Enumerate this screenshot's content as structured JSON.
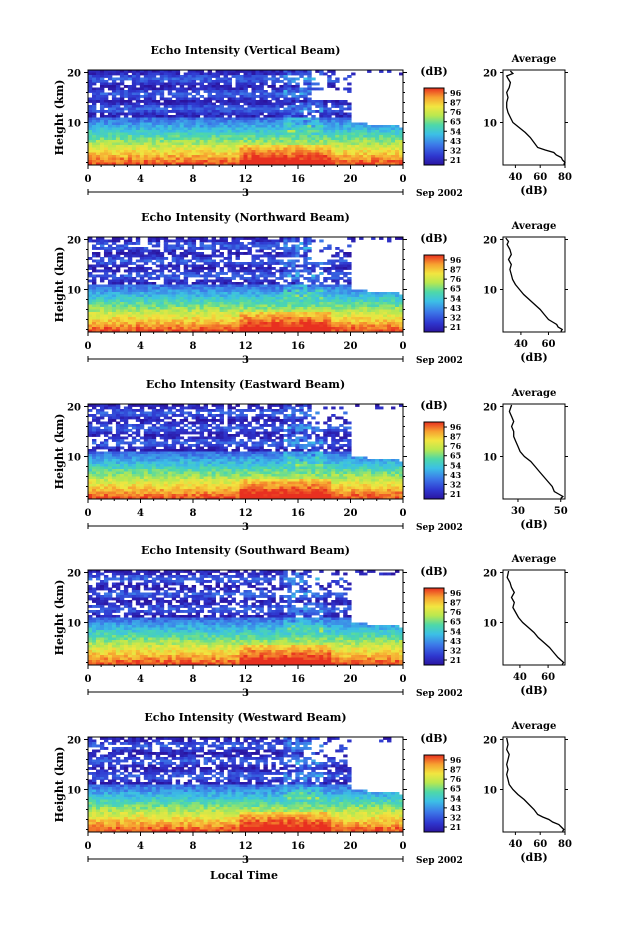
{
  "figure": {
    "xlabel": "Local Time",
    "date_label": "Sep 2002",
    "day_label": "3"
  },
  "chart_data": [
    {
      "type": "heatmap",
      "title": "Echo Intensity (Vertical Beam)",
      "ylabel": "Height (km)",
      "x_ticks": [
        "0",
        "4",
        "8",
        "12",
        "16",
        "20",
        "0"
      ],
      "y_ticks": [
        "20",
        "10"
      ],
      "xlim": [
        0,
        24
      ],
      "ylim": [
        1.5,
        20.5
      ],
      "colorbar": {
        "unit": "(dB)",
        "ticks": [
          "96",
          "87",
          "76",
          "65",
          "54",
          "43",
          "32",
          "21"
        ]
      },
      "average": {
        "title": "Average",
        "xlabel": "(dB)",
        "x_ticks": [
          "40",
          "60",
          "80"
        ],
        "xlim": [
          30,
          80
        ],
        "y_ticks": [
          "20",
          "10"
        ],
        "profile": [
          [
            79,
            1.6
          ],
          [
            80,
            2
          ],
          [
            78,
            2.5
          ],
          [
            77,
            3
          ],
          [
            73,
            3.5
          ],
          [
            71,
            4
          ],
          [
            64,
            4.5
          ],
          [
            58,
            5
          ],
          [
            55,
            6
          ],
          [
            52,
            7
          ],
          [
            48,
            8
          ],
          [
            43,
            9
          ],
          [
            38,
            10
          ],
          [
            36,
            11
          ],
          [
            34,
            12
          ],
          [
            33,
            13
          ],
          [
            33,
            14
          ],
          [
            34,
            15
          ],
          [
            33,
            16
          ],
          [
            35,
            17
          ],
          [
            36,
            18
          ],
          [
            34,
            18.8
          ],
          [
            33,
            19.3
          ],
          [
            38,
            19.8
          ],
          [
            36,
            20.3
          ]
        ]
      }
    },
    {
      "type": "heatmap",
      "title": "Echo Intensity (Northward Beam)",
      "ylabel": "Height (km)",
      "x_ticks": [
        "0",
        "4",
        "8",
        "12",
        "16",
        "20",
        "0"
      ],
      "y_ticks": [
        "20",
        "10"
      ],
      "xlim": [
        0,
        24
      ],
      "ylim": [
        1.5,
        20.5
      ],
      "colorbar": {
        "unit": "(dB)",
        "ticks": [
          "96",
          "87",
          "76",
          "65",
          "54",
          "43",
          "32",
          "21"
        ]
      },
      "average": {
        "title": "Average",
        "xlabel": "(dB)",
        "x_ticks": [
          "40",
          "60"
        ],
        "xlim": [
          27,
          72
        ],
        "y_ticks": [
          "20",
          "10"
        ],
        "profile": [
          [
            69,
            1.6
          ],
          [
            70,
            2
          ],
          [
            67,
            2.5
          ],
          [
            66,
            3
          ],
          [
            63,
            3.5
          ],
          [
            60,
            4
          ],
          [
            57,
            5
          ],
          [
            54,
            6
          ],
          [
            50,
            7
          ],
          [
            46,
            8
          ],
          [
            42,
            9
          ],
          [
            39,
            10
          ],
          [
            36,
            11
          ],
          [
            34,
            12
          ],
          [
            33,
            13
          ],
          [
            32,
            14
          ],
          [
            33,
            15
          ],
          [
            31,
            16
          ],
          [
            33,
            17
          ],
          [
            32,
            18
          ],
          [
            30,
            19
          ],
          [
            31,
            19.6
          ],
          [
            29,
            20.3
          ]
        ]
      }
    },
    {
      "type": "heatmap",
      "title": "Echo Intensity (Eastward Beam)",
      "ylabel": "Height (km)",
      "x_ticks": [
        "0",
        "4",
        "8",
        "12",
        "16",
        "20",
        "0"
      ],
      "y_ticks": [
        "20",
        "10"
      ],
      "xlim": [
        0,
        24
      ],
      "ylim": [
        1.5,
        20.5
      ],
      "colorbar": {
        "unit": "(dB)",
        "ticks": [
          "96",
          "87",
          "76",
          "65",
          "54",
          "43",
          "32",
          "21"
        ]
      },
      "average": {
        "title": "Average",
        "xlabel": "(dB)",
        "x_ticks": [
          "30",
          "50"
        ],
        "xlim": [
          23,
          52
        ],
        "y_ticks": [
          "20",
          "10"
        ],
        "profile": [
          [
            50,
            1.6
          ],
          [
            51,
            2
          ],
          [
            49,
            2.5
          ],
          [
            47,
            3
          ],
          [
            46,
            4
          ],
          [
            44,
            5
          ],
          [
            42,
            6
          ],
          [
            40,
            7
          ],
          [
            38,
            8
          ],
          [
            36,
            9
          ],
          [
            33,
            10
          ],
          [
            31,
            11
          ],
          [
            30,
            12
          ],
          [
            29,
            13
          ],
          [
            28,
            14
          ],
          [
            28,
            15
          ],
          [
            27,
            16
          ],
          [
            28,
            17
          ],
          [
            27,
            18
          ],
          [
            26,
            19
          ],
          [
            27,
            20.3
          ]
        ]
      }
    },
    {
      "type": "heatmap",
      "title": "Echo Intensity (Southward Beam)",
      "ylabel": "Height (km)",
      "x_ticks": [
        "0",
        "4",
        "8",
        "12",
        "16",
        "20",
        "0"
      ],
      "y_ticks": [
        "20",
        "10"
      ],
      "xlim": [
        0,
        24
      ],
      "ylim": [
        1.5,
        20.5
      ],
      "colorbar": {
        "unit": "(dB)",
        "ticks": [
          "96",
          "87",
          "76",
          "65",
          "54",
          "43",
          "32",
          "21"
        ]
      },
      "average": {
        "title": "Average",
        "xlabel": "(dB)",
        "x_ticks": [
          "40",
          "60"
        ],
        "xlim": [
          28,
          72
        ],
        "y_ticks": [
          "20",
          "10"
        ],
        "profile": [
          [
            70,
            1.6
          ],
          [
            71,
            2
          ],
          [
            69,
            2.5
          ],
          [
            67,
            3
          ],
          [
            64,
            4
          ],
          [
            61,
            5
          ],
          [
            57,
            6
          ],
          [
            53,
            7
          ],
          [
            50,
            8
          ],
          [
            46,
            9
          ],
          [
            42,
            10
          ],
          [
            39,
            11
          ],
          [
            37,
            12
          ],
          [
            35,
            13
          ],
          [
            36,
            14
          ],
          [
            34,
            15
          ],
          [
            36,
            16
          ],
          [
            34,
            17
          ],
          [
            33,
            18
          ],
          [
            31,
            19
          ],
          [
            32,
            20.3
          ]
        ]
      }
    },
    {
      "type": "heatmap",
      "title": "Echo Intensity (Westward Beam)",
      "ylabel": "Height (km)",
      "x_ticks": [
        "0",
        "4",
        "8",
        "12",
        "16",
        "20",
        "0"
      ],
      "y_ticks": [
        "20",
        "10"
      ],
      "xlim": [
        0,
        24
      ],
      "ylim": [
        1.5,
        20.5
      ],
      "colorbar": {
        "unit": "(dB)",
        "ticks": [
          "96",
          "87",
          "76",
          "65",
          "54",
          "43",
          "32",
          "21"
        ]
      },
      "average": {
        "title": "Average",
        "xlabel": "(dB)",
        "x_ticks": [
          "40",
          "60",
          "80"
        ],
        "xlim": [
          30,
          80
        ],
        "y_ticks": [
          "20",
          "10"
        ],
        "profile": [
          [
            78,
            1.6
          ],
          [
            79,
            2
          ],
          [
            77,
            2.5
          ],
          [
            75,
            3
          ],
          [
            70,
            3.5
          ],
          [
            67,
            4
          ],
          [
            62,
            4.5
          ],
          [
            58,
            5
          ],
          [
            55,
            6
          ],
          [
            51,
            7
          ],
          [
            47,
            8
          ],
          [
            42,
            9
          ],
          [
            38,
            10
          ],
          [
            35,
            11
          ],
          [
            34,
            12
          ],
          [
            33,
            13
          ],
          [
            34,
            14
          ],
          [
            33,
            15
          ],
          [
            34,
            16
          ],
          [
            35,
            17
          ],
          [
            33,
            18
          ],
          [
            34,
            19
          ],
          [
            33,
            20.3
          ]
        ]
      }
    }
  ]
}
